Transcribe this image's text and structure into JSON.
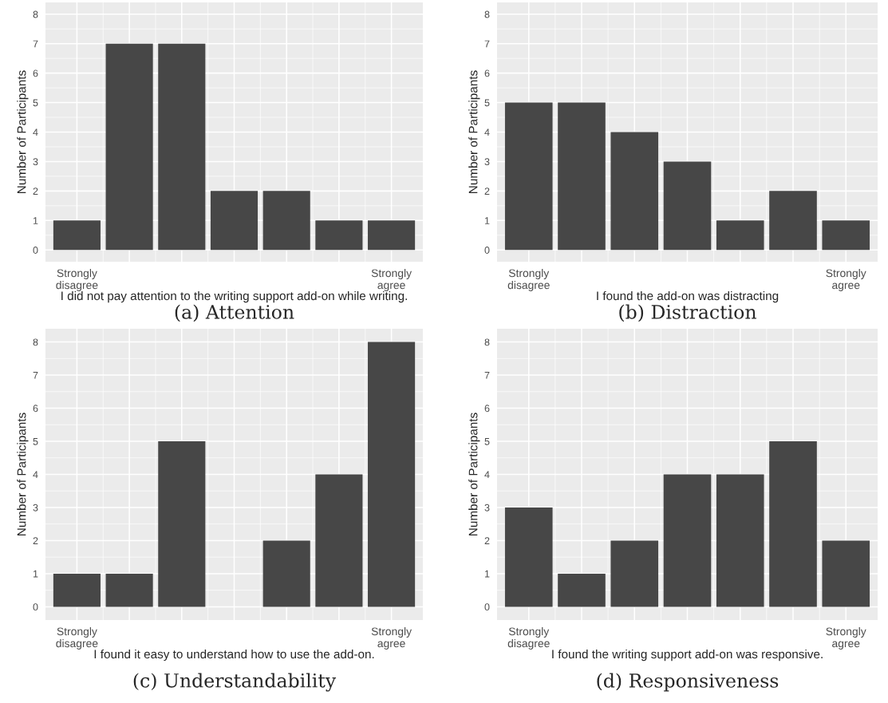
{
  "chart_data": [
    {
      "type": "bar",
      "title": "(a) Attention",
      "xlabel": "I did not pay attention to the writing support add-on while writing.",
      "ylabel": "Number of Participants",
      "categories": [
        "Strongly\ndisagree",
        null,
        null,
        null,
        null,
        null,
        "Strongly\nagree"
      ],
      "values": [
        1,
        7,
        7,
        2,
        2,
        1,
        1
      ],
      "color": "#474747",
      "ylim": [
        -0.4,
        8.4
      ],
      "yticks": [
        0,
        1,
        2,
        3,
        4,
        5,
        6,
        7,
        8
      ],
      "grid": true
    },
    {
      "type": "bar",
      "title": "(b) Distraction",
      "xlabel": "I found the add-on was distracting",
      "ylabel": "Number of Participants",
      "categories": [
        "Strongly\ndisagree",
        null,
        null,
        null,
        null,
        null,
        "Strongly\nagree"
      ],
      "values": [
        5,
        5,
        4,
        3,
        1,
        2,
        1
      ],
      "color": "#474747",
      "ylim": [
        -0.4,
        8.4
      ],
      "yticks": [
        0,
        1,
        2,
        3,
        4,
        5,
        6,
        7,
        8
      ],
      "grid": true
    },
    {
      "type": "bar",
      "title": "(c) Understandability",
      "xlabel": "I found it easy to understand how to use the add-on.",
      "ylabel": "Number of Participants",
      "categories": [
        "Strongly\ndisagree",
        null,
        null,
        null,
        null,
        null,
        "Strongly\nagree"
      ],
      "values": [
        1,
        1,
        5,
        0,
        2,
        4,
        8
      ],
      "color": "#474747",
      "ylim": [
        -0.4,
        8.4
      ],
      "yticks": [
        0,
        1,
        2,
        3,
        4,
        5,
        6,
        7,
        8
      ],
      "grid": true
    },
    {
      "type": "bar",
      "title": "(d) Responsiveness",
      "xlabel": "I found the writing support add-on was responsive.",
      "ylabel": "Number of Participants",
      "categories": [
        "Strongly\ndisagree",
        null,
        null,
        null,
        null,
        null,
        "Strongly\nagree"
      ],
      "values": [
        3,
        1,
        2,
        4,
        4,
        5,
        2
      ],
      "color": "#474747",
      "ylim": [
        -0.4,
        8.4
      ],
      "yticks": [
        0,
        1,
        2,
        3,
        4,
        5,
        6,
        7,
        8
      ],
      "grid": true
    }
  ]
}
